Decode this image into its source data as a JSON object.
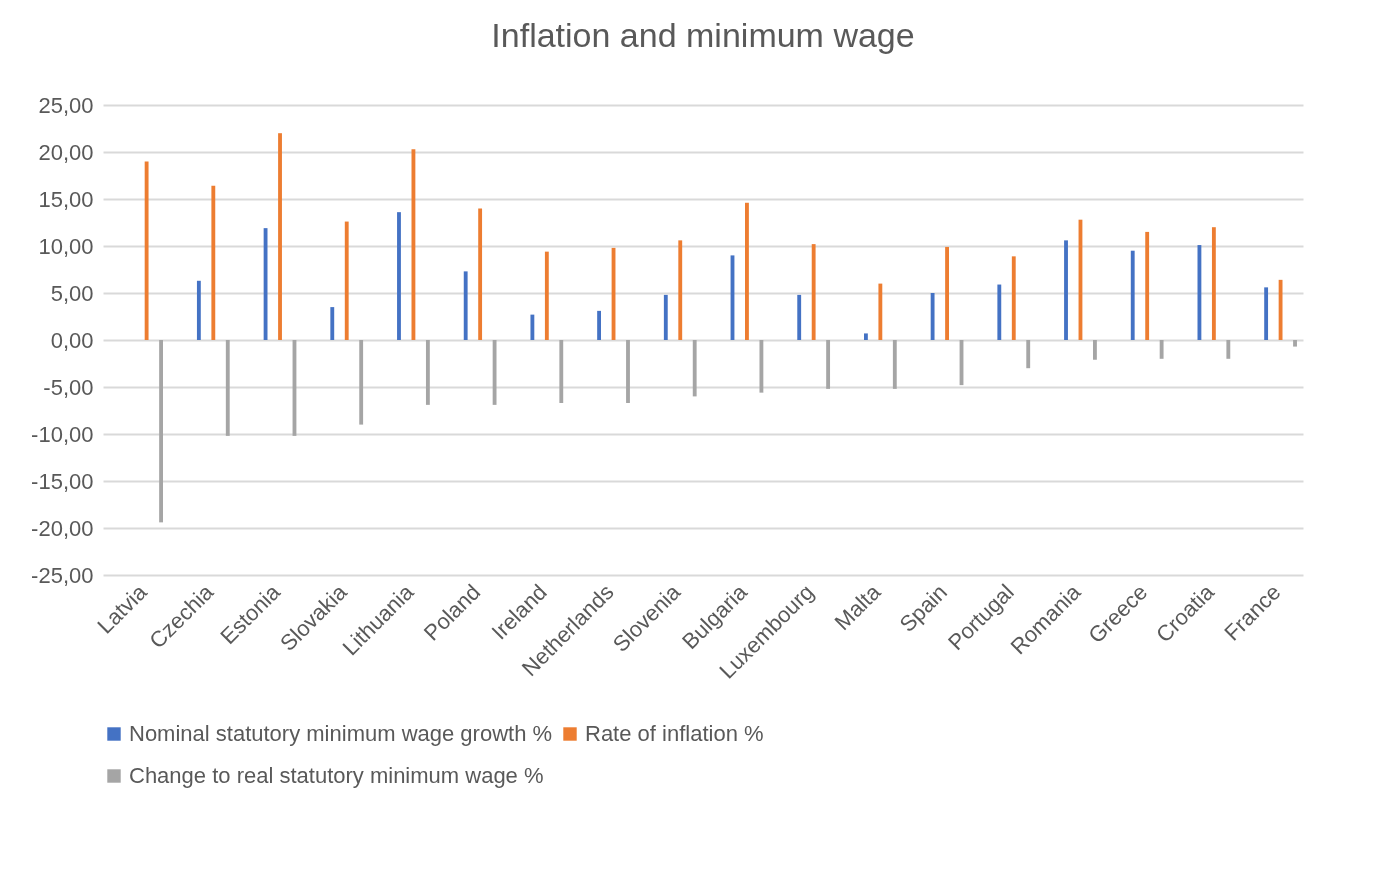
{
  "chart_data": {
    "type": "bar",
    "title": "Inflation and minimum wage",
    "categories": [
      "Latvia",
      "Czechia",
      "Estonia",
      "Slovakia",
      "Lithuania",
      "Poland",
      "Ireland",
      "Netherlands",
      "Slovenia",
      "Bulgaria",
      "Luxembourg",
      "Malta",
      "Spain",
      "Portugal",
      "Romania",
      "Greece",
      "Croatia",
      "France"
    ],
    "series": [
      {
        "name": "Nominal statutory minimum wage growth %",
        "color": "#4472c4",
        "values": [
          0,
          6.3,
          11.9,
          3.5,
          13.6,
          7.3,
          2.7,
          3.1,
          4.8,
          9.0,
          4.8,
          0.7,
          5.0,
          5.9,
          10.6,
          9.5,
          10.1,
          5.6
        ]
      },
      {
        "name": "Rate of inflation %",
        "color": "#ed7d31",
        "values": [
          19.0,
          16.4,
          22.0,
          12.6,
          20.3,
          14.0,
          9.4,
          9.8,
          10.6,
          14.6,
          10.2,
          6.0,
          9.9,
          8.9,
          12.8,
          11.5,
          12.0,
          6.4
        ]
      },
      {
        "name": "Change to real statutory minimum wage %",
        "color": "#a5a5a5",
        "values": [
          -19.4,
          -10.2,
          -10.2,
          -9.0,
          -6.9,
          -6.9,
          -6.7,
          -6.7,
          -6.0,
          -5.6,
          -5.2,
          -5.2,
          -4.8,
          -3.0,
          -2.1,
          -2.0,
          -2.0,
          -0.7
        ]
      }
    ],
    "ylim": [
      -25,
      25
    ],
    "yticks": [
      {
        "value": 25,
        "label": "25,00"
      },
      {
        "value": 20,
        "label": "20,00"
      },
      {
        "value": 15,
        "label": "15,00"
      },
      {
        "value": 10,
        "label": "10,00"
      },
      {
        "value": 5,
        "label": "5,00"
      },
      {
        "value": 0,
        "label": "0,00"
      },
      {
        "value": -5,
        "label": "-5,00"
      },
      {
        "value": -10,
        "label": "-10,00"
      },
      {
        "value": -15,
        "label": "-15,00"
      },
      {
        "value": -20,
        "label": "-20,00"
      },
      {
        "value": -25,
        "label": "-25,00"
      }
    ],
    "grid": "y",
    "legend": "bottom"
  }
}
